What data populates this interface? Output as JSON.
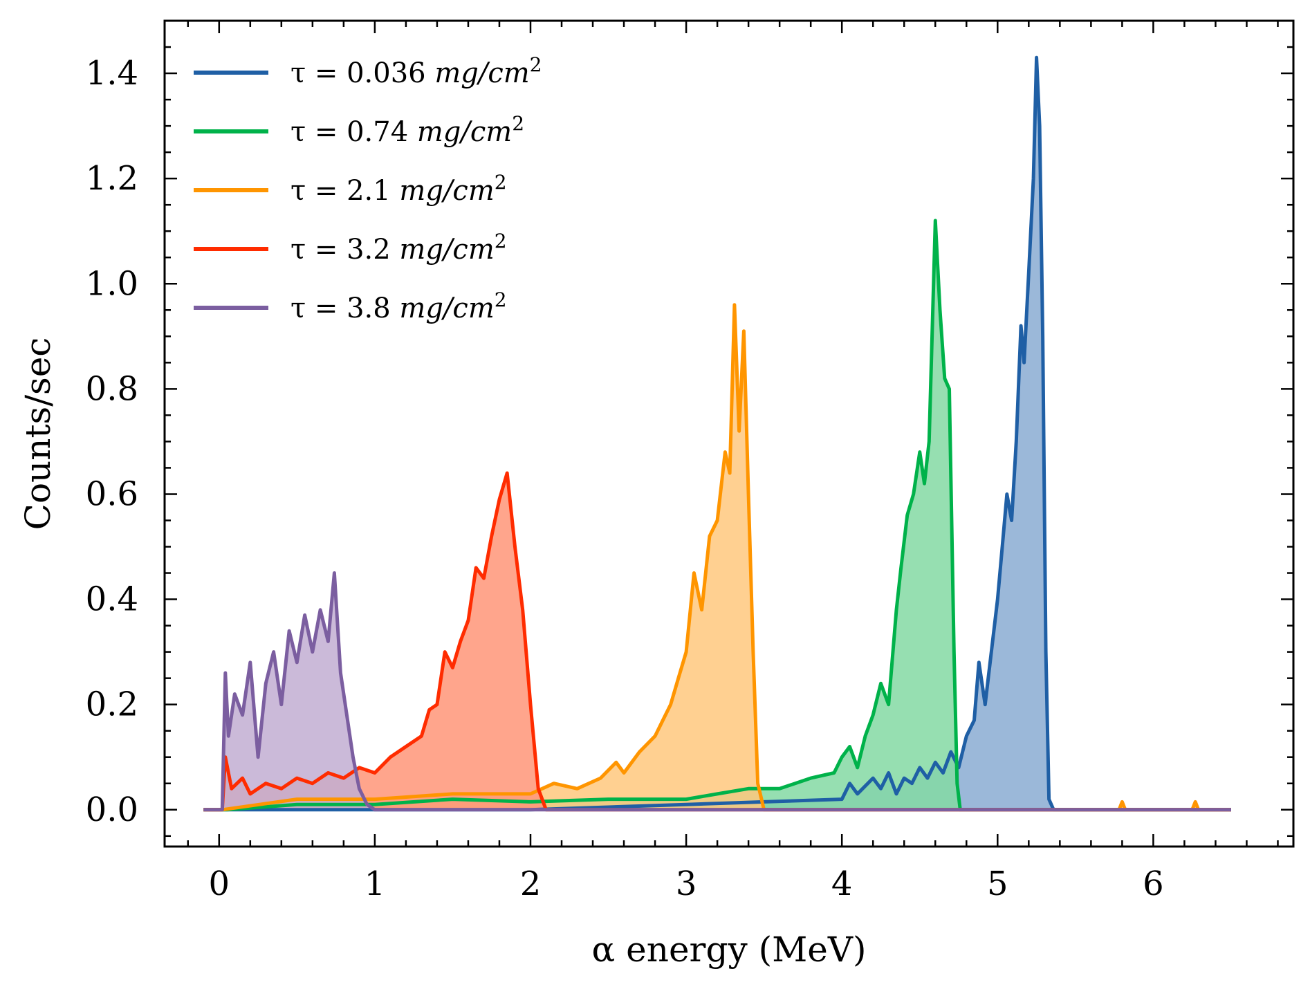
{
  "chart_data": {
    "type": "area",
    "xlabel": "α energy (MeV)",
    "ylabel": "Counts/sec",
    "xlim": [
      -0.35,
      6.9
    ],
    "ylim": [
      -0.07,
      1.5
    ],
    "x_ticks": [
      0,
      1,
      2,
      3,
      4,
      5,
      6
    ],
    "x_tick_labels": [
      "0",
      "1",
      "2",
      "3",
      "4",
      "5",
      "6"
    ],
    "y_ticks": [
      0.0,
      0.2,
      0.4,
      0.6,
      0.8,
      1.0,
      1.2,
      1.4
    ],
    "y_tick_labels": [
      "0.0",
      "0.2",
      "0.4",
      "0.6",
      "0.8",
      "1.0",
      "1.2",
      "1.4"
    ],
    "grid": false,
    "legend_position": "top-left",
    "series": [
      {
        "name": "τ = 0.036 mg/cm²",
        "label_parts": [
          "τ = 0.036 ",
          "mg/cm",
          "2"
        ],
        "color": "#1f5fa5",
        "fill": "#8aabd2",
        "points": [
          [
            -0.1,
            0
          ],
          [
            0.02,
            0
          ],
          [
            2.0,
            0
          ],
          [
            2.5,
            0.005
          ],
          [
            3.0,
            0.01
          ],
          [
            3.5,
            0.015
          ],
          [
            4.0,
            0.02
          ],
          [
            4.05,
            0.05
          ],
          [
            4.1,
            0.03
          ],
          [
            4.2,
            0.06
          ],
          [
            4.25,
            0.04
          ],
          [
            4.3,
            0.07
          ],
          [
            4.35,
            0.03
          ],
          [
            4.4,
            0.06
          ],
          [
            4.45,
            0.05
          ],
          [
            4.5,
            0.08
          ],
          [
            4.55,
            0.06
          ],
          [
            4.6,
            0.09
          ],
          [
            4.65,
            0.07
          ],
          [
            4.7,
            0.11
          ],
          [
            4.75,
            0.08
          ],
          [
            4.8,
            0.14
          ],
          [
            4.85,
            0.17
          ],
          [
            4.88,
            0.28
          ],
          [
            4.92,
            0.2
          ],
          [
            4.96,
            0.3
          ],
          [
            5.0,
            0.4
          ],
          [
            5.03,
            0.5
          ],
          [
            5.06,
            0.6
          ],
          [
            5.09,
            0.55
          ],
          [
            5.12,
            0.7
          ],
          [
            5.15,
            0.92
          ],
          [
            5.17,
            0.85
          ],
          [
            5.2,
            1.02
          ],
          [
            5.23,
            1.2
          ],
          [
            5.25,
            1.43
          ],
          [
            5.27,
            1.3
          ],
          [
            5.29,
            0.9
          ],
          [
            5.31,
            0.3
          ],
          [
            5.33,
            0.02
          ],
          [
            5.36,
            0
          ],
          [
            6.5,
            0
          ]
        ]
      },
      {
        "name": "τ = 0.74 mg/cm²",
        "label_parts": [
          "τ = 0.74 ",
          "mg/cm",
          "2"
        ],
        "color": "#00b24a",
        "fill": "#84d9a3",
        "points": [
          [
            -0.1,
            0
          ],
          [
            0.05,
            0
          ],
          [
            0.5,
            0.01
          ],
          [
            1.0,
            0.01
          ],
          [
            1.5,
            0.02
          ],
          [
            2.0,
            0.015
          ],
          [
            2.5,
            0.02
          ],
          [
            3.0,
            0.02
          ],
          [
            3.2,
            0.03
          ],
          [
            3.4,
            0.04
          ],
          [
            3.6,
            0.04
          ],
          [
            3.8,
            0.06
          ],
          [
            3.95,
            0.07
          ],
          [
            4.0,
            0.1
          ],
          [
            4.05,
            0.12
          ],
          [
            4.1,
            0.08
          ],
          [
            4.15,
            0.14
          ],
          [
            4.2,
            0.18
          ],
          [
            4.25,
            0.24
          ],
          [
            4.3,
            0.2
          ],
          [
            4.35,
            0.38
          ],
          [
            4.38,
            0.46
          ],
          [
            4.42,
            0.56
          ],
          [
            4.46,
            0.6
          ],
          [
            4.5,
            0.68
          ],
          [
            4.53,
            0.62
          ],
          [
            4.56,
            0.7
          ],
          [
            4.6,
            1.12
          ],
          [
            4.63,
            0.95
          ],
          [
            4.66,
            0.82
          ],
          [
            4.69,
            0.8
          ],
          [
            4.72,
            0.3
          ],
          [
            4.74,
            0.05
          ],
          [
            4.76,
            0
          ],
          [
            6.5,
            0
          ]
        ]
      },
      {
        "name": "τ = 2.1 mg/cm²",
        "label_parts": [
          "τ = 2.1 ",
          "mg/cm",
          "2"
        ],
        "color": "#ff9500",
        "fill": "#ffc87e",
        "points": [
          [
            -0.1,
            0
          ],
          [
            0.02,
            0
          ],
          [
            0.5,
            0.02
          ],
          [
            1.0,
            0.02
          ],
          [
            1.5,
            0.03
          ],
          [
            2.0,
            0.03
          ],
          [
            2.15,
            0.05
          ],
          [
            2.3,
            0.04
          ],
          [
            2.45,
            0.06
          ],
          [
            2.55,
            0.09
          ],
          [
            2.6,
            0.07
          ],
          [
            2.7,
            0.11
          ],
          [
            2.8,
            0.14
          ],
          [
            2.85,
            0.17
          ],
          [
            2.9,
            0.2
          ],
          [
            2.95,
            0.25
          ],
          [
            3.0,
            0.3
          ],
          [
            3.05,
            0.45
          ],
          [
            3.1,
            0.38
          ],
          [
            3.15,
            0.52
          ],
          [
            3.2,
            0.55
          ],
          [
            3.25,
            0.68
          ],
          [
            3.28,
            0.64
          ],
          [
            3.31,
            0.96
          ],
          [
            3.34,
            0.72
          ],
          [
            3.37,
            0.91
          ],
          [
            3.4,
            0.6
          ],
          [
            3.43,
            0.3
          ],
          [
            3.46,
            0.05
          ],
          [
            3.5,
            0
          ],
          [
            5.78,
            0
          ],
          [
            5.8,
            0.015
          ],
          [
            5.82,
            0
          ],
          [
            6.25,
            0
          ],
          [
            6.27,
            0.015
          ],
          [
            6.29,
            0
          ],
          [
            6.5,
            0
          ]
        ]
      },
      {
        "name": "τ = 3.2 mg/cm²",
        "label_parts": [
          "τ = 3.2 ",
          "mg/cm",
          "2"
        ],
        "color": "#ff2c00",
        "fill": "#ff9578",
        "points": [
          [
            -0.1,
            0
          ],
          [
            0.02,
            0
          ],
          [
            0.04,
            0.1
          ],
          [
            0.08,
            0.04
          ],
          [
            0.15,
            0.06
          ],
          [
            0.2,
            0.03
          ],
          [
            0.3,
            0.05
          ],
          [
            0.4,
            0.04
          ],
          [
            0.5,
            0.06
          ],
          [
            0.6,
            0.05
          ],
          [
            0.7,
            0.07
          ],
          [
            0.8,
            0.06
          ],
          [
            0.9,
            0.08
          ],
          [
            1.0,
            0.07
          ],
          [
            1.1,
            0.1
          ],
          [
            1.2,
            0.12
          ],
          [
            1.3,
            0.14
          ],
          [
            1.35,
            0.19
          ],
          [
            1.4,
            0.2
          ],
          [
            1.45,
            0.3
          ],
          [
            1.5,
            0.27
          ],
          [
            1.55,
            0.32
          ],
          [
            1.6,
            0.36
          ],
          [
            1.65,
            0.46
          ],
          [
            1.7,
            0.44
          ],
          [
            1.75,
            0.52
          ],
          [
            1.8,
            0.59
          ],
          [
            1.85,
            0.64
          ],
          [
            1.9,
            0.5
          ],
          [
            1.95,
            0.38
          ],
          [
            2.0,
            0.2
          ],
          [
            2.05,
            0.04
          ],
          [
            2.1,
            0
          ],
          [
            6.5,
            0
          ]
        ]
      },
      {
        "name": "τ = 3.8 mg/cm²",
        "label_parts": [
          "τ = 3.8 ",
          "mg/cm",
          "2"
        ],
        "color": "#7b5ea0",
        "fill": "#c2aed2",
        "points": [
          [
            -0.1,
            0
          ],
          [
            0.02,
            0
          ],
          [
            0.04,
            0.26
          ],
          [
            0.06,
            0.14
          ],
          [
            0.1,
            0.22
          ],
          [
            0.15,
            0.18
          ],
          [
            0.2,
            0.28
          ],
          [
            0.25,
            0.1
          ],
          [
            0.3,
            0.24
          ],
          [
            0.35,
            0.3
          ],
          [
            0.4,
            0.2
          ],
          [
            0.45,
            0.34
          ],
          [
            0.5,
            0.28
          ],
          [
            0.55,
            0.37
          ],
          [
            0.6,
            0.3
          ],
          [
            0.65,
            0.38
          ],
          [
            0.7,
            0.32
          ],
          [
            0.74,
            0.45
          ],
          [
            0.78,
            0.26
          ],
          [
            0.82,
            0.18
          ],
          [
            0.86,
            0.1
          ],
          [
            0.9,
            0.04
          ],
          [
            0.95,
            0.01
          ],
          [
            1.0,
            0
          ],
          [
            6.5,
            0
          ]
        ]
      }
    ]
  }
}
